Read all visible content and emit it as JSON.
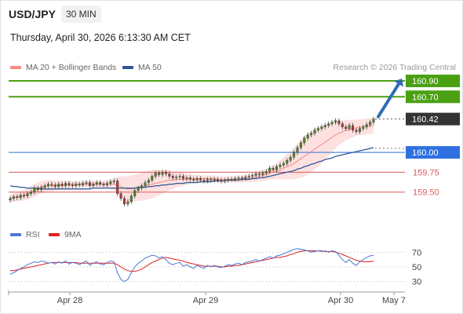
{
  "header": {
    "symbol": "USD/JPY",
    "timeframe": "30 MIN",
    "datetime": "Thursday, April 30, 2026 6:13:30 AM CET"
  },
  "legend": {
    "ma20": {
      "label": "MA 20 + Bollinger Bands",
      "color": "#f28b82"
    },
    "ma50": {
      "label": "MA 50",
      "color": "#2f5597"
    },
    "credit": "Research © 2026 Trading Central"
  },
  "rsi_legend": {
    "rsi": {
      "label": "RSI",
      "color": "#4a78d6"
    },
    "ma": {
      "label": "9MA",
      "color": "#e02020"
    }
  },
  "chart_data": [
    {
      "type": "line",
      "x_ticks": [
        "Apr 28",
        "Apr 29",
        "Apr 30",
        "May 7"
      ],
      "levels": [
        {
          "value": 160.9,
          "label": "160.90",
          "style": "resistance",
          "color": "#4aa012"
        },
        {
          "value": 160.7,
          "label": "160.70",
          "style": "resistance",
          "color": "#4aa012"
        },
        {
          "value": 160.42,
          "label": "160.42",
          "style": "last",
          "color": "#333333"
        },
        {
          "value": 160.0,
          "label": "160.00",
          "style": "pivot",
          "color": "#2f6fe0"
        },
        {
          "value": 159.75,
          "label": "159.75",
          "style": "support",
          "color": "#e05a5a"
        },
        {
          "value": 159.5,
          "label": "159.50",
          "style": "support",
          "color": "#e05a5a"
        }
      ],
      "price_close": [
        159.42,
        159.44,
        159.43,
        159.46,
        159.45,
        159.48,
        159.5,
        159.55,
        159.53,
        159.56,
        159.58,
        159.6,
        159.59,
        159.57,
        159.6,
        159.58,
        159.61,
        159.59,
        159.58,
        159.6,
        159.59,
        159.61,
        159.62,
        159.58,
        159.6,
        159.62,
        159.6,
        159.59,
        159.61,
        159.63,
        159.64,
        159.48,
        159.42,
        159.35,
        159.38,
        159.45,
        159.52,
        159.55,
        159.58,
        159.62,
        159.65,
        159.7,
        159.74,
        159.72,
        159.75,
        159.73,
        159.7,
        159.68,
        159.69,
        159.7,
        159.67,
        159.68,
        159.66,
        159.65,
        159.67,
        159.65,
        159.64,
        159.66,
        159.65,
        159.66,
        159.65,
        159.64,
        159.65,
        159.66,
        159.66,
        159.67,
        159.68,
        159.67,
        159.69,
        159.7,
        159.71,
        159.73,
        159.72,
        159.74,
        159.76,
        159.8,
        159.78,
        159.82,
        159.84,
        159.86,
        159.9,
        159.94,
        160.0,
        160.06,
        160.12,
        160.18,
        160.22,
        160.24,
        160.28,
        160.3,
        160.32,
        160.34,
        160.36,
        160.38,
        160.4,
        160.36,
        160.32,
        160.3,
        160.34,
        160.28,
        160.26,
        160.3,
        160.32,
        160.35,
        160.38,
        160.42
      ],
      "ma20": [
        159.42,
        159.43,
        159.44,
        159.45,
        159.46,
        159.48,
        159.5,
        159.52,
        159.54,
        159.56,
        159.57,
        159.58,
        159.58,
        159.58,
        159.59,
        159.59,
        159.59,
        159.59,
        159.6,
        159.6,
        159.6,
        159.6,
        159.6,
        159.6,
        159.6,
        159.6,
        159.6,
        159.6,
        159.6,
        159.6,
        159.6,
        159.59,
        159.57,
        159.55,
        159.54,
        159.54,
        159.55,
        159.56,
        159.57,
        159.58,
        159.59,
        159.6,
        159.61,
        159.62,
        159.63,
        159.64,
        159.65,
        159.65,
        159.66,
        159.66,
        159.66,
        159.66,
        159.67,
        159.67,
        159.67,
        159.67,
        159.67,
        159.67,
        159.67,
        159.67,
        159.66,
        159.66,
        159.66,
        159.66,
        159.66,
        159.66,
        159.66,
        159.66,
        159.67,
        159.67,
        159.68,
        159.69,
        159.7,
        159.71,
        159.72,
        159.74,
        159.75,
        159.76,
        159.78,
        159.8,
        159.82,
        159.84,
        159.86,
        159.89,
        159.92,
        159.95,
        159.98,
        160.01,
        160.04,
        160.07,
        160.1,
        160.13,
        160.16,
        160.19,
        160.22,
        160.24,
        160.26,
        160.28,
        160.29,
        160.3,
        160.31,
        160.32,
        160.32,
        160.33,
        160.33,
        160.34
      ],
      "ma50": [
        159.58,
        159.57,
        159.57,
        159.56,
        159.56,
        159.55,
        159.55,
        159.55,
        159.55,
        159.54,
        159.54,
        159.54,
        159.54,
        159.54,
        159.54,
        159.54,
        159.54,
        159.54,
        159.54,
        159.54,
        159.54,
        159.54,
        159.54,
        159.54,
        159.55,
        159.55,
        159.55,
        159.55,
        159.55,
        159.55,
        159.55,
        159.55,
        159.55,
        159.55,
        159.55,
        159.55,
        159.55,
        159.56,
        159.56,
        159.56,
        159.57,
        159.57,
        159.58,
        159.58,
        159.59,
        159.59,
        159.6,
        159.6,
        159.61,
        159.61,
        159.61,
        159.62,
        159.62,
        159.62,
        159.62,
        159.63,
        159.63,
        159.63,
        159.63,
        159.64,
        159.64,
        159.64,
        159.64,
        159.65,
        159.65,
        159.65,
        159.65,
        159.66,
        159.66,
        159.66,
        159.67,
        159.67,
        159.68,
        159.68,
        159.69,
        159.7,
        159.71,
        159.72,
        159.73,
        159.74,
        159.75,
        159.76,
        159.77,
        159.79,
        159.8,
        159.82,
        159.83,
        159.85,
        159.86,
        159.88,
        159.89,
        159.91,
        159.92,
        159.93,
        159.95,
        159.96,
        159.97,
        159.98,
        159.99,
        160.0,
        160.01,
        160.02,
        160.03,
        160.04,
        160.05,
        160.06
      ],
      "band_width": [
        0.05,
        0.05,
        0.06,
        0.06,
        0.07,
        0.07,
        0.08,
        0.08,
        0.08,
        0.08,
        0.08,
        0.07,
        0.07,
        0.06,
        0.06,
        0.05,
        0.05,
        0.05,
        0.04,
        0.04,
        0.04,
        0.04,
        0.04,
        0.04,
        0.04,
        0.04,
        0.04,
        0.04,
        0.05,
        0.06,
        0.08,
        0.1,
        0.13,
        0.15,
        0.16,
        0.17,
        0.17,
        0.17,
        0.18,
        0.18,
        0.18,
        0.18,
        0.17,
        0.16,
        0.15,
        0.14,
        0.13,
        0.11,
        0.1,
        0.09,
        0.08,
        0.07,
        0.06,
        0.05,
        0.05,
        0.04,
        0.04,
        0.04,
        0.04,
        0.04,
        0.04,
        0.04,
        0.04,
        0.04,
        0.04,
        0.04,
        0.04,
        0.04,
        0.04,
        0.05,
        0.05,
        0.06,
        0.06,
        0.07,
        0.07,
        0.08,
        0.09,
        0.1,
        0.12,
        0.14,
        0.16,
        0.18,
        0.2,
        0.22,
        0.24,
        0.25,
        0.26,
        0.26,
        0.26,
        0.25,
        0.24,
        0.22,
        0.2,
        0.18,
        0.17,
        0.15,
        0.14,
        0.13,
        0.12,
        0.11,
        0.1,
        0.1,
        0.1,
        0.1,
        0.1,
        0.1
      ],
      "forecast_arrow": {
        "from": 160.42,
        "to": 160.9
      }
    },
    {
      "type": "line",
      "y_ticks": [
        70,
        50,
        30
      ],
      "ylim": [
        20,
        80
      ],
      "rsi": [
        40,
        42,
        45,
        48,
        50,
        53,
        55,
        57,
        56,
        58,
        57,
        55,
        56,
        54,
        57,
        55,
        58,
        54,
        56,
        55,
        53,
        56,
        58,
        52,
        55,
        57,
        54,
        53,
        56,
        58,
        57,
        42,
        33,
        30,
        33,
        42,
        50,
        55,
        58,
        62,
        64,
        66,
        65,
        62,
        64,
        60,
        55,
        53,
        55,
        56,
        51,
        53,
        50,
        48,
        52,
        50,
        48,
        52,
        50,
        52,
        50,
        49,
        51,
        53,
        52,
        54,
        55,
        53,
        56,
        57,
        58,
        60,
        58,
        60,
        62,
        64,
        62,
        65,
        66,
        68,
        70,
        72,
        74,
        75,
        74,
        73,
        72,
        70,
        71,
        72,
        71,
        72,
        70,
        72,
        71,
        66,
        60,
        56,
        60,
        55,
        52,
        57,
        60,
        63,
        65,
        66
      ],
      "ma9": [
        45,
        45,
        46,
        47,
        48,
        49,
        50,
        51,
        52,
        53,
        54,
        55,
        56,
        56,
        56,
        56,
        56,
        56,
        56,
        56,
        55,
        55,
        55,
        55,
        55,
        55,
        55,
        55,
        55,
        55,
        55,
        53,
        50,
        47,
        45,
        44,
        44,
        45,
        47,
        50,
        53,
        56,
        58,
        60,
        62,
        63,
        62,
        61,
        60,
        59,
        58,
        56,
        55,
        54,
        53,
        52,
        51,
        51,
        51,
        51,
        51,
        50,
        50,
        51,
        51,
        52,
        52,
        53,
        54,
        55,
        56,
        57,
        58,
        59,
        60,
        61,
        62,
        63,
        63,
        64,
        65,
        67,
        68,
        70,
        71,
        72,
        72,
        72,
        72,
        72,
        72,
        71,
        71,
        71,
        70,
        69,
        67,
        65,
        63,
        61,
        59,
        58,
        57,
        57,
        57,
        58
      ]
    }
  ]
}
